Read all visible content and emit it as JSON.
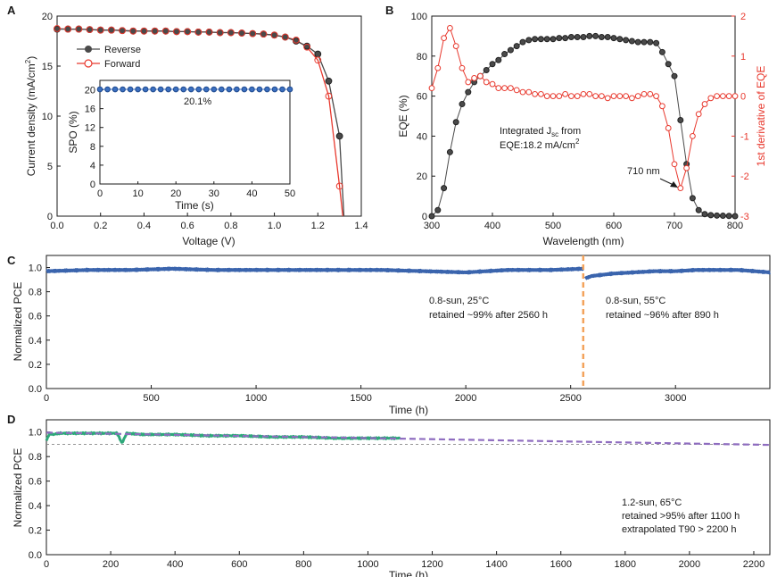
{
  "colors": {
    "reverse": "#4a4a4a",
    "forward": "#e8392e",
    "spo": "#3b6fc0",
    "eqe": "#4a4a4a",
    "deriv": "#e8392e",
    "pce_c": "#3a64ad",
    "pce_d": "#2ea87a",
    "divider": "#f3a35c",
    "extrap": "#8e6cbf",
    "t90": "#888888"
  },
  "chart_data": [
    {
      "id": "A",
      "panel_label": "A",
      "type": "line",
      "xlabel": "Voltage (V)",
      "ylabel": "Current density (mA/cm²)",
      "ylabel_pre": "Current density (mA/cm",
      "ylabel_sup": "2",
      "ylabel_post": ")",
      "xlim": [
        0.0,
        1.4
      ],
      "ylim": [
        0,
        20
      ],
      "xticks": [
        "0.0",
        "0.2",
        "0.4",
        "0.6",
        "0.8",
        "1.0",
        "1.2",
        "1.4"
      ],
      "yticks": [
        "0",
        "5",
        "10",
        "15",
        "20"
      ],
      "legend": [
        "Reverse",
        "Forward"
      ],
      "series": [
        {
          "name": "Reverse",
          "x": [
            0.0,
            0.05,
            0.1,
            0.15,
            0.2,
            0.25,
            0.3,
            0.35,
            0.4,
            0.45,
            0.5,
            0.55,
            0.6,
            0.65,
            0.7,
            0.75,
            0.8,
            0.85,
            0.9,
            0.95,
            1.0,
            1.05,
            1.1,
            1.15,
            1.2,
            1.25,
            1.3
          ],
          "y": [
            18.7,
            18.7,
            18.7,
            18.65,
            18.6,
            18.6,
            18.55,
            18.5,
            18.5,
            18.5,
            18.5,
            18.45,
            18.45,
            18.4,
            18.4,
            18.35,
            18.35,
            18.3,
            18.25,
            18.2,
            18.1,
            17.9,
            17.5,
            17.0,
            16.2,
            13.5,
            8.0
          ]
        },
        {
          "name": "Forward",
          "x": [
            0.0,
            0.05,
            0.1,
            0.15,
            0.2,
            0.25,
            0.3,
            0.35,
            0.4,
            0.45,
            0.5,
            0.55,
            0.6,
            0.65,
            0.7,
            0.75,
            0.8,
            0.85,
            0.9,
            0.95,
            1.0,
            1.05,
            1.1,
            1.15,
            1.2,
            1.25,
            1.3
          ],
          "y": [
            18.75,
            18.7,
            18.7,
            18.65,
            18.6,
            18.6,
            18.55,
            18.5,
            18.5,
            18.5,
            18.5,
            18.45,
            18.45,
            18.4,
            18.4,
            18.35,
            18.35,
            18.3,
            18.25,
            18.2,
            18.1,
            17.9,
            17.6,
            16.9,
            15.6,
            12.0,
            3.0
          ]
        }
      ],
      "inset": {
        "xlabel": "Time (s)",
        "ylabel": "SPO (%)",
        "xlim": [
          0,
          50
        ],
        "ylim": [
          0,
          22
        ],
        "xticks": [
          "0",
          "10",
          "20",
          "30",
          "40",
          "50"
        ],
        "yticks": [
          "0",
          "4",
          "8",
          "12",
          "16",
          "20"
        ],
        "annotation": "20.1%",
        "series": [
          {
            "name": "SPO",
            "x": [
              0,
              2,
              4,
              6,
              8,
              10,
              12,
              14,
              16,
              18,
              20,
              22,
              24,
              26,
              28,
              30,
              32,
              34,
              36,
              38,
              40,
              42,
              44,
              46,
              48,
              50
            ],
            "y": [
              20.1,
              20.1,
              20.1,
              20.1,
              20.1,
              20.1,
              20.1,
              20.1,
              20.1,
              20.1,
              20.1,
              20.1,
              20.1,
              20.1,
              20.1,
              20.1,
              20.1,
              20.1,
              20.1,
              20.1,
              20.1,
              20.1,
              20.1,
              20.1,
              20.1,
              20.1
            ]
          }
        ]
      }
    },
    {
      "id": "B",
      "panel_label": "B",
      "type": "line",
      "xlabel": "Wavelength (nm)",
      "ylabel": "EQE (%)",
      "ylabel_right": "1st derivative of EQE",
      "xlim": [
        300,
        800
      ],
      "ylim": [
        0,
        100
      ],
      "ylim_right": [
        -3,
        2
      ],
      "xticks": [
        "300",
        "400",
        "500",
        "600",
        "700",
        "800"
      ],
      "yticks": [
        "0",
        "20",
        "40",
        "60",
        "80",
        "100"
      ],
      "yticks_right": [
        "-3",
        "-2",
        "-1",
        "0",
        "1",
        "2"
      ],
      "annotation_1": "Integrated J",
      "annotation_1_sub": "sc",
      "annotation_1_post": " from",
      "annotation_2": "EQE:18.2 mA/cm",
      "annotation_2_sup": "2",
      "annotation_3": "710 nm",
      "series": [
        {
          "name": "EQE",
          "axis": "left",
          "x": [
            300,
            310,
            320,
            330,
            340,
            350,
            360,
            370,
            380,
            390,
            400,
            410,
            420,
            430,
            440,
            450,
            460,
            470,
            480,
            490,
            500,
            510,
            520,
            530,
            540,
            550,
            560,
            570,
            580,
            590,
            600,
            610,
            620,
            630,
            640,
            650,
            660,
            670,
            680,
            690,
            700,
            710,
            720,
            730,
            740,
            750,
            760,
            770,
            780,
            790,
            800
          ],
          "y": [
            0,
            3,
            14,
            32,
            47,
            56,
            62,
            67,
            70,
            73,
            76,
            78,
            81,
            83,
            85,
            87,
            88,
            88.5,
            88.5,
            88.5,
            88.5,
            89,
            89,
            89.5,
            89.5,
            89.5,
            90,
            90,
            89.5,
            89.5,
            89,
            88.5,
            88,
            87.5,
            87,
            87,
            87,
            86.5,
            82,
            76,
            70,
            48,
            26,
            9,
            3,
            1,
            0.5,
            0.3,
            0.2,
            0.1,
            0
          ]
        },
        {
          "name": "1st derivative",
          "axis": "right",
          "x": [
            300,
            310,
            320,
            330,
            340,
            350,
            360,
            370,
            380,
            390,
            400,
            410,
            420,
            430,
            440,
            450,
            460,
            470,
            480,
            490,
            500,
            510,
            520,
            530,
            540,
            550,
            560,
            570,
            580,
            590,
            600,
            610,
            620,
            630,
            640,
            650,
            660,
            670,
            680,
            690,
            700,
            710,
            720,
            730,
            740,
            750,
            760,
            770,
            780,
            790,
            800
          ],
          "y": [
            0.2,
            0.7,
            1.45,
            1.7,
            1.25,
            0.7,
            0.35,
            0.45,
            0.5,
            0.35,
            0.3,
            0.2,
            0.2,
            0.2,
            0.15,
            0.1,
            0.1,
            0.05,
            0.05,
            0.0,
            0.0,
            0.0,
            0.05,
            0.0,
            0.0,
            0.05,
            0.05,
            0.0,
            0.0,
            -0.05,
            0.0,
            0.0,
            0.0,
            -0.05,
            0.0,
            0.05,
            0.05,
            0.0,
            -0.25,
            -0.8,
            -1.7,
            -2.3,
            -1.8,
            -1.0,
            -0.45,
            -0.2,
            -0.05,
            0.0,
            0.0,
            0.0,
            0.0
          ]
        }
      ]
    },
    {
      "id": "C",
      "panel_label": "C",
      "type": "line",
      "xlabel": "Time (h)",
      "ylabel": "Normalized PCE",
      "xlim": [
        0,
        3450
      ],
      "ylim": [
        0,
        1.1
      ],
      "xticks": [
        "0",
        "500",
        "1000",
        "1500",
        "2000",
        "2500",
        "3000"
      ],
      "yticks": [
        "0.0",
        "0.2",
        "0.4",
        "0.6",
        "0.8",
        "1.0"
      ],
      "divider_x": 2560,
      "annotation_left_1": "0.8-sun, 25°C",
      "annotation_left_2": "retained ~99% after 2560 h",
      "annotation_right_1": "0.8-sun, 55°C",
      "annotation_right_2": "retained ~96% after 890 h",
      "series": [
        {
          "name": "PCE 25°C",
          "x": [
            0,
            200,
            400,
            600,
            800,
            1000,
            1200,
            1400,
            1600,
            1800,
            2000,
            2200,
            2400,
            2560
          ],
          "y": [
            0.97,
            0.98,
            0.98,
            0.99,
            0.98,
            0.98,
            0.98,
            0.98,
            0.98,
            0.97,
            0.96,
            0.98,
            0.98,
            0.99
          ]
        },
        {
          "name": "PCE 55°C",
          "x": [
            2570,
            2600,
            2700,
            2800,
            2900,
            3000,
            3100,
            3200,
            3300,
            3450
          ],
          "y": [
            0.91,
            0.93,
            0.95,
            0.96,
            0.97,
            0.97,
            0.98,
            0.98,
            0.98,
            0.96
          ]
        }
      ]
    },
    {
      "id": "D",
      "panel_label": "D",
      "type": "line",
      "xlabel": "Time (h)",
      "ylabel": "Normalized PCE",
      "xlim": [
        0,
        2250
      ],
      "ylim": [
        0,
        1.1
      ],
      "xticks": [
        "0",
        "200",
        "400",
        "600",
        "800",
        "1000",
        "1200",
        "1400",
        "1600",
        "1800",
        "2000",
        "2200"
      ],
      "yticks": [
        "0.0",
        "0.2",
        "0.4",
        "0.6",
        "0.8",
        "1.0"
      ],
      "t90": 0.9,
      "annotation_1": "1.2-sun, 65°C",
      "annotation_2": "retained >95% after 1100 h",
      "annotation_3": "extrapolated T90 > 2200 h",
      "series": [
        {
          "name": "PCE 65°C",
          "x": [
            0,
            10,
            20,
            40,
            60,
            180,
            200,
            220,
            235,
            250,
            300,
            400,
            500,
            600,
            700,
            800,
            900,
            1000,
            1100
          ],
          "y": [
            0.93,
            0.99,
            0.98,
            0.99,
            0.99,
            0.99,
            0.99,
            0.99,
            0.91,
            0.99,
            0.98,
            0.98,
            0.97,
            0.97,
            0.96,
            0.96,
            0.95,
            0.95,
            0.95
          ]
        },
        {
          "name": "Extrapolation",
          "x": [
            0,
            2250
          ],
          "y": [
            0.995,
            0.895
          ]
        }
      ]
    }
  ]
}
